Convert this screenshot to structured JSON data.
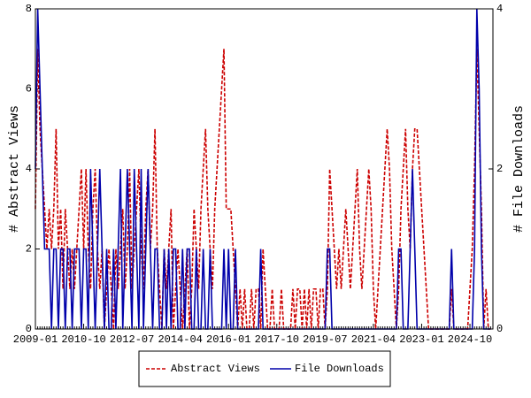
{
  "chart_data": {
    "type": "line",
    "ylabel": "# Abstract Views",
    "y2label": "# File Downloads",
    "categories": [
      "2009-01",
      null,
      null,
      null,
      null,
      null,
      null,
      null,
      null,
      null,
      null,
      null,
      null,
      null,
      null,
      null,
      null,
      null,
      null,
      null,
      null,
      "2010-10",
      null,
      null,
      null,
      null,
      null,
      null,
      null,
      null,
      null,
      null,
      null,
      null,
      null,
      null,
      null,
      null,
      null,
      null,
      null,
      null,
      "2012-07",
      null,
      null,
      null,
      null,
      null,
      null,
      null,
      null,
      null,
      null,
      null,
      null,
      null,
      null,
      null,
      null,
      null,
      null,
      null,
      null,
      "2014-04",
      null,
      null,
      null,
      null,
      null,
      null,
      null,
      null,
      null,
      null,
      null,
      null,
      null,
      null,
      null,
      null,
      null,
      null,
      null,
      null,
      "2016-01",
      null,
      null,
      null,
      null,
      null,
      null,
      null,
      null,
      null,
      null,
      null,
      null,
      null,
      null,
      null,
      null,
      null,
      null,
      null,
      null,
      "2017-10",
      null,
      null,
      null,
      null,
      null,
      null,
      null,
      null,
      null,
      null,
      null,
      null,
      null,
      null,
      null,
      null,
      null,
      null,
      null,
      null,
      "2019-07",
      null,
      null,
      null,
      null,
      null,
      null,
      null,
      null,
      null,
      null,
      null,
      null,
      null,
      null,
      null,
      null,
      null,
      null,
      null,
      null,
      "2021-04",
      null,
      null,
      null,
      null,
      null,
      null,
      null,
      null,
      null,
      null,
      null,
      null,
      null,
      null,
      null,
      null,
      null,
      null,
      null,
      null,
      "2023-01",
      null,
      null,
      null,
      null,
      null,
      null,
      null,
      null,
      null,
      null,
      null,
      null,
      null,
      null,
      null,
      null,
      null,
      null,
      null,
      null,
      "2024-10",
      null,
      null,
      null,
      null,
      null,
      null,
      null,
      null,
      null
    ],
    "series": [
      {
        "name": "Abstract Views",
        "color": "#cc0000",
        "dash": true,
        "axis": "y",
        "values": [
          3,
          7,
          5,
          4,
          3,
          2,
          3,
          2,
          3,
          5,
          2,
          3,
          1,
          3,
          2,
          1,
          2,
          1,
          2,
          3,
          4,
          2,
          4,
          2,
          1,
          3,
          4,
          2,
          1,
          2,
          0,
          1,
          2,
          1,
          0,
          2,
          1,
          2,
          3,
          1,
          2,
          4,
          1,
          2,
          3,
          4,
          2,
          1,
          3,
          4,
          2,
          3,
          5,
          2,
          1,
          0,
          2,
          1,
          2,
          3,
          0,
          1,
          2,
          1,
          0,
          1,
          2,
          0,
          1,
          3,
          2,
          1,
          3,
          4,
          5,
          3,
          2,
          1,
          3,
          4,
          5,
          6,
          7,
          3,
          3,
          3,
          2,
          1,
          0,
          1,
          0,
          1,
          0,
          0,
          1,
          0,
          1,
          1,
          0,
          2,
          1,
          0,
          0,
          1,
          0,
          0,
          0,
          1,
          0,
          0,
          0,
          0,
          1,
          0,
          1,
          1,
          0,
          1,
          0,
          1,
          0,
          1,
          1,
          0,
          1,
          1,
          0,
          1,
          4,
          3,
          2,
          1,
          2,
          1,
          2,
          3,
          2,
          1,
          2,
          3,
          4,
          2,
          1,
          2,
          3,
          4,
          3,
          1,
          0,
          1,
          2,
          3,
          4,
          5,
          4,
          2,
          1,
          0,
          1,
          3,
          4,
          5,
          3,
          2,
          4,
          5,
          5,
          4,
          3,
          2,
          1,
          0,
          0,
          0,
          0,
          0,
          0,
          0,
          0,
          0,
          0,
          1,
          0,
          0,
          0,
          0,
          0,
          0,
          0,
          1,
          2,
          4,
          7,
          5,
          3,
          0,
          1,
          0,
          0
        ]
      },
      {
        "name": "File Downloads",
        "color": "#0000aa",
        "dash": false,
        "axis": "y2",
        "values": [
          2,
          4,
          3,
          2,
          1,
          1,
          1,
          0,
          1,
          1,
          0,
          1,
          1,
          0,
          1,
          1,
          0,
          1,
          1,
          1,
          0,
          1,
          1,
          0,
          2,
          1,
          0,
          1,
          2,
          1,
          0,
          1,
          0,
          0,
          1,
          0,
          1,
          2,
          0,
          1,
          2,
          1,
          0,
          2,
          1,
          0,
          2,
          0,
          1,
          2,
          1,
          0,
          1,
          1,
          0,
          0,
          1,
          0,
          1,
          0,
          1,
          1,
          0,
          0,
          1,
          0,
          1,
          1,
          0,
          0,
          1,
          0,
          0,
          1,
          0,
          0,
          1,
          0,
          0,
          0,
          0,
          0,
          1,
          0,
          1,
          0,
          0,
          1,
          0,
          0,
          0,
          0,
          0,
          0,
          0,
          0,
          0,
          0,
          1,
          0,
          0,
          0,
          0,
          0,
          0,
          0,
          0,
          0,
          0,
          0,
          0,
          0,
          0,
          0,
          0,
          0,
          0,
          0,
          0,
          0,
          0,
          0,
          0,
          0,
          0,
          0,
          0,
          1,
          1,
          0,
          0,
          0,
          0,
          0,
          0,
          0,
          0,
          0,
          0,
          0,
          0,
          0,
          0,
          0,
          0,
          0,
          0,
          0,
          0,
          0,
          0,
          0,
          0,
          0,
          0,
          0,
          0,
          0,
          1,
          1,
          0,
          0,
          0,
          1,
          2,
          1,
          0,
          0,
          0,
          0,
          0,
          0,
          0,
          0,
          0,
          0,
          0,
          0,
          0,
          0,
          0,
          1,
          0,
          0,
          0,
          0,
          0,
          0,
          0,
          0,
          0,
          1,
          4,
          3,
          1,
          0,
          0,
          0,
          0
        ]
      }
    ],
    "ylim": [
      0,
      8
    ],
    "yticks": [
      0,
      2,
      4,
      6,
      8
    ],
    "y2lim": [
      0,
      4
    ],
    "y2ticks": [
      0,
      2,
      4
    ],
    "legend": "bottom"
  }
}
